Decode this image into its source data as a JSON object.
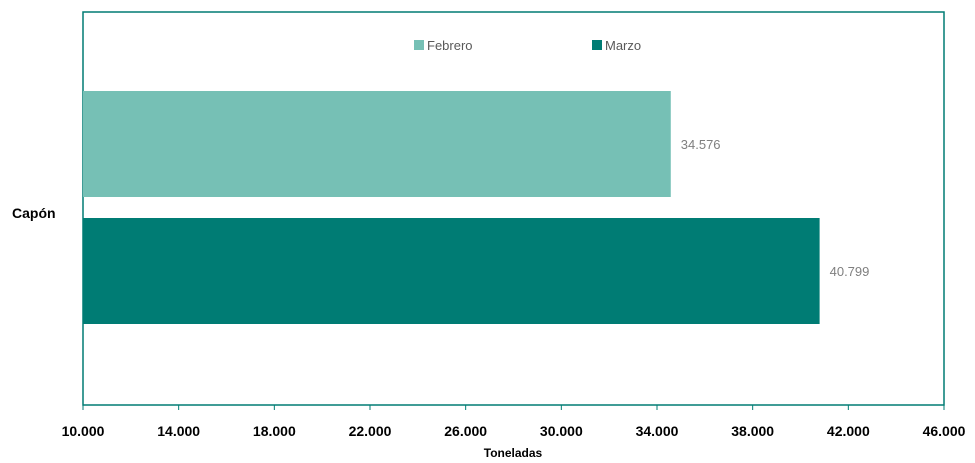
{
  "chart_data": {
    "type": "bar",
    "orientation": "horizontal",
    "categories": [
      "Capón"
    ],
    "series": [
      {
        "name": "Febrero",
        "values": [
          34576
        ],
        "label": "34.576",
        "color": "#76c0b5"
      },
      {
        "name": "Marzo",
        "values": [
          40799
        ],
        "label": "40.799",
        "color": "#007c74"
      }
    ],
    "xlabel": "Toneladas",
    "ylabel": "",
    "xlim": [
      10000,
      46000
    ],
    "ticks": [
      {
        "value": 10000,
        "label": "10.000"
      },
      {
        "value": 14000,
        "label": "14.000"
      },
      {
        "value": 18000,
        "label": "18.000"
      },
      {
        "value": 22000,
        "label": "22.000"
      },
      {
        "value": 26000,
        "label": "26.000"
      },
      {
        "value": 30000,
        "label": "30.000"
      },
      {
        "value": 34000,
        "label": "34.000"
      },
      {
        "value": 38000,
        "label": "38.000"
      },
      {
        "value": 42000,
        "label": "42.000"
      },
      {
        "value": 46000,
        "label": "46.000"
      }
    ],
    "legend_position": "top",
    "grid": false,
    "frame_color": "#007c74"
  }
}
